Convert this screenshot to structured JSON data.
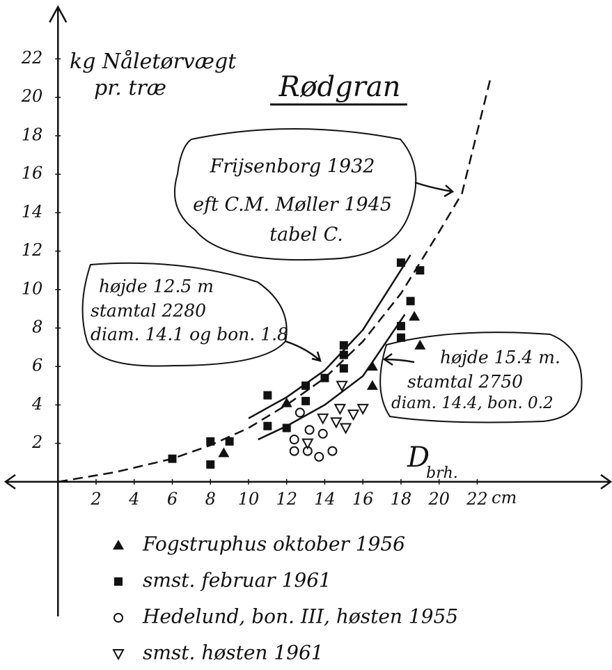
{
  "chart_data": {
    "type": "scatter",
    "title": "Rødgran",
    "y_label": [
      "kg Nåletørvægt",
      "pr. træ"
    ],
    "x_label": "D",
    "x_label_sub": "brh.",
    "x_unit": "cm",
    "xlim": [
      -2.75,
      29
    ],
    "ylim": [
      -7,
      24.7
    ],
    "xticks": [
      2,
      4,
      6,
      8,
      10,
      12,
      14,
      16,
      18,
      20,
      22
    ],
    "yticks": [
      2,
      4,
      6,
      8,
      10,
      12,
      14,
      16,
      18,
      20,
      22
    ],
    "series": [
      {
        "name": "Fogstruphus oktober 1956",
        "marker": "triangle",
        "color": "#111",
        "x": [
          8.7,
          12,
          16.5,
          16.5,
          18.7,
          19
        ],
        "values": [
          1.5,
          4.1,
          6,
          5,
          8.6,
          7.1
        ]
      },
      {
        "name": "smst. februar 1961",
        "marker": "square",
        "color": "#111",
        "x": [
          6,
          8,
          8,
          9,
          11,
          11,
          12,
          13,
          13,
          14,
          15,
          15,
          15,
          18,
          18,
          18,
          18.5,
          19
        ],
        "values": [
          1.2,
          2.1,
          0.9,
          2.1,
          4.5,
          2.9,
          2.8,
          4.2,
          5,
          5.4,
          5.9,
          6.6,
          7.1,
          11.4,
          8.1,
          7.5,
          9.4,
          11
        ]
      },
      {
        "name": "Hedelund, bon. III, høsten 1955",
        "marker": "circle",
        "color": "#111",
        "x": [
          12.4,
          12.4,
          12.7,
          13.2,
          13.1,
          13.7,
          13.9,
          14.4
        ],
        "values": [
          2.2,
          1.6,
          3.6,
          2.7,
          1.6,
          1.3,
          2.5,
          1.6
        ]
      },
      {
        "name": "smst. høsten 1961",
        "marker": "triangle-down",
        "color": "#111",
        "x": [
          13.1,
          13.9,
          14.6,
          14.8,
          15.1,
          14.9,
          15.5,
          16
        ],
        "values": [
          2,
          3.3,
          3.1,
          3.8,
          2.8,
          5,
          3.5,
          3.8
        ]
      }
    ],
    "curves": [
      {
        "dash": true,
        "x": [
          0,
          3,
          6,
          8,
          10,
          12,
          14,
          16,
          18,
          20,
          21.2,
          22.7
        ],
        "values": [
          0,
          0.5,
          1.2,
          1.9,
          2.8,
          4,
          5.4,
          7.3,
          9.8,
          13,
          15,
          21
        ]
      },
      {
        "dash": false,
        "x": [
          10,
          12,
          14,
          16,
          18.5
        ],
        "values": [
          3.3,
          4.4,
          5.8,
          7.9,
          11.8
        ]
      },
      {
        "dash": false,
        "x": [
          10.5,
          12,
          14,
          16,
          18.2
        ],
        "values": [
          2.2,
          2.9,
          4,
          5.5,
          8.7
        ]
      }
    ],
    "annotations": [
      [
        "Frijsenborg 1932",
        "eft C.M. Møller 1945",
        "tabel C."
      ],
      [
        "højde 12.5 m",
        "stamtal 2280",
        "diam. 14.1 og bon. 1.8"
      ],
      [
        "højde 15.4 m.",
        "stamtal 2750",
        "diam. 14.4, bon. 0.2"
      ]
    ]
  }
}
